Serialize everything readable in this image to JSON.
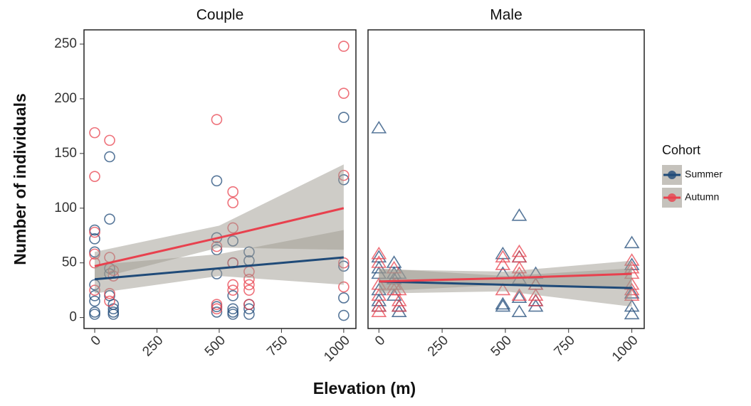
{
  "chart_data": {
    "type": "scatter",
    "x_label": "Elevation (m)",
    "y_label": "Number of individuals",
    "legend_title": "Cohort",
    "series": [
      {
        "name": "Summer",
        "color": "#1f4a78"
      },
      {
        "name": "Autumn",
        "color": "#e8414e"
      }
    ],
    "band_color": "#9e9a8f",
    "xlim": [
      -43,
      1049
    ],
    "xticks": [
      0,
      250,
      500,
      750,
      1000
    ],
    "ylim": [
      -10,
      263
    ],
    "yticks": [
      0,
      50,
      100,
      150,
      200,
      250
    ],
    "panels": [
      {
        "title": "Couple",
        "marker": "circle",
        "series": [
          {
            "x": [
              0,
              0,
              0,
              0,
              0,
              0,
              0,
              0,
              60,
              60,
              60,
              60,
              60,
              75,
              75,
              75,
              75,
              490,
              490,
              490,
              490,
              490,
              490,
              555,
              555,
              555,
              555,
              555,
              555,
              620,
              620,
              620,
              620,
              620,
              1000,
              1000,
              1000,
              1000,
              1000
            ],
            "values": [
              80,
              72,
              60,
              30,
              20,
              15,
              5,
              3,
              147,
              90,
              45,
              40,
              20,
              12,
              8,
              5,
              3,
              125,
              73,
              62,
              40,
              10,
              5,
              70,
              50,
              20,
              8,
              5,
              3,
              60,
              52,
              12,
              8,
              3,
              183,
              126,
              47,
              18,
              2
            ]
          },
          {
            "x": [
              0,
              0,
              0,
              0,
              0,
              0,
              60,
              60,
              60,
              60,
              75,
              75,
              490,
              490,
              490,
              490,
              555,
              555,
              555,
              555,
              555,
              555,
              620,
              620,
              620,
              620,
              620,
              1000,
              1000,
              1000,
              1000,
              1000
            ],
            "values": [
              169,
              129,
              78,
              58,
              50,
              25,
              162,
              55,
              22,
              15,
              43,
              38,
              181,
              65,
              12,
              8,
              115,
              105,
              82,
              50,
              30,
              25,
              42,
              35,
              30,
              25,
              12,
              248,
              205,
              130,
              50,
              28
            ]
          }
        ],
        "fits": [
          {
            "x": [
              0,
              500,
              1000
            ],
            "values": [
              35,
              45,
              55
            ],
            "lower": [
              22,
              38,
              30
            ],
            "upper": [
              48,
              58,
              80
            ]
          },
          {
            "x": [
              0,
              500,
              1000
            ],
            "values": [
              47,
              73,
              100
            ],
            "lower": [
              35,
              64,
              62
            ],
            "upper": [
              60,
              84,
              140
            ]
          }
        ]
      },
      {
        "title": "Male",
        "marker": "triangle",
        "series": [
          {
            "x": [
              0,
              0,
              0,
              0,
              0,
              0,
              0,
              60,
              60,
              60,
              60,
              80,
              80,
              80,
              490,
              490,
              490,
              490,
              555,
              555,
              555,
              555,
              555,
              620,
              620,
              620,
              620,
              1000,
              1000,
              1000,
              1000,
              1000
            ],
            "values": [
              173,
              55,
              45,
              40,
              25,
              15,
              10,
              50,
              40,
              35,
              20,
              40,
              10,
              5,
              58,
              40,
              12,
              10,
              93,
              55,
              35,
              18,
              5,
              40,
              30,
              15,
              10,
              68,
              48,
              22,
              10,
              3
            ]
          },
          {
            "x": [
              0,
              0,
              0,
              0,
              0,
              0,
              60,
              60,
              60,
              80,
              80,
              80,
              490,
              490,
              490,
              555,
              555,
              555,
              555,
              555,
              620,
              620,
              620,
              1000,
              1000,
              1000,
              1000,
              1000,
              1000
            ],
            "values": [
              58,
              50,
              30,
              20,
              10,
              5,
              45,
              30,
              25,
              25,
              15,
              10,
              55,
              48,
              25,
              60,
              55,
              45,
              40,
              20,
              30,
              20,
              15,
              52,
              45,
              40,
              30,
              25,
              20
            ]
          }
        ],
        "fits": [
          {
            "x": [
              0,
              500,
              1000
            ],
            "values": [
              33,
              30,
              27
            ],
            "lower": [
              22,
              24,
              10
            ],
            "upper": [
              45,
              38,
              45
            ]
          },
          {
            "x": [
              0,
              500,
              1000
            ],
            "values": [
              33,
              36,
              40
            ],
            "lower": [
              24,
              30,
              28
            ],
            "upper": [
              44,
              42,
              52
            ]
          }
        ]
      }
    ]
  }
}
